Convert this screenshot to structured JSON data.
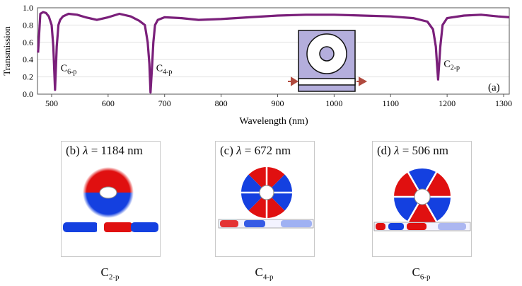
{
  "chart_data": {
    "type": "line",
    "xlabel": "Wavelength (nm)",
    "ylabel": "Transmission",
    "xlim": [
      475,
      1310
    ],
    "ylim": [
      0.0,
      1.0
    ],
    "xticks": [
      500,
      600,
      700,
      800,
      900,
      1000,
      1100,
      1200,
      1300
    ],
    "yticks": [
      0.0,
      0.2,
      0.4,
      0.6,
      0.8,
      1.0
    ],
    "panel_tag": "(a)",
    "line_color": "#7a1f7a",
    "series": [
      {
        "x": [
          476,
          480,
          485,
          490,
          495,
          500,
          503,
          506,
          509,
          512,
          515,
          520,
          530,
          545,
          560,
          580,
          600,
          620,
          640,
          655,
          665,
          670,
          673,
          675,
          678,
          680,
          683,
          688,
          700,
          730,
          760,
          800,
          850,
          900,
          950,
          1000,
          1050,
          1100,
          1140,
          1165,
          1175,
          1180,
          1182,
          1184,
          1186,
          1188,
          1192,
          1200,
          1230,
          1260,
          1290,
          1310
        ],
        "y": [
          0.48,
          0.93,
          0.95,
          0.94,
          0.9,
          0.8,
          0.55,
          0.05,
          0.55,
          0.8,
          0.86,
          0.9,
          0.93,
          0.92,
          0.89,
          0.86,
          0.89,
          0.93,
          0.9,
          0.85,
          0.8,
          0.6,
          0.35,
          0.02,
          0.35,
          0.6,
          0.8,
          0.86,
          0.89,
          0.88,
          0.86,
          0.87,
          0.89,
          0.91,
          0.92,
          0.92,
          0.91,
          0.9,
          0.88,
          0.84,
          0.75,
          0.55,
          0.35,
          0.17,
          0.35,
          0.55,
          0.8,
          0.88,
          0.91,
          0.92,
          0.9,
          0.89
        ]
      }
    ],
    "annotations": [
      {
        "text": "C",
        "sub": "6-p",
        "x": 506,
        "y": 0.3
      },
      {
        "text": "C",
        "sub": "4-p",
        "x": 675,
        "y": 0.3
      },
      {
        "text": "C",
        "sub": "2-p",
        "x": 1184,
        "y": 0.35
      }
    ]
  },
  "panels": [
    {
      "tag": "(b)",
      "lambda_symbol": "λ",
      "lambda_value": "= 1184 nm",
      "caption_main": "C",
      "caption_sub": "2-p",
      "mode_order": 2
    },
    {
      "tag": "(c)",
      "lambda_symbol": "λ",
      "lambda_value": "= 672 nm",
      "caption_main": "C",
      "caption_sub": "4-p",
      "mode_order": 4
    },
    {
      "tag": "(d)",
      "lambda_symbol": "λ",
      "lambda_value": "= 506 nm",
      "caption_main": "C",
      "caption_sub": "6-p",
      "mode_order": 6
    }
  ],
  "colors": {
    "field_positive": "#e01010",
    "field_negative": "#1440e0",
    "schematic_fill": "#b4aedc",
    "arrow": "#b04a3e"
  }
}
